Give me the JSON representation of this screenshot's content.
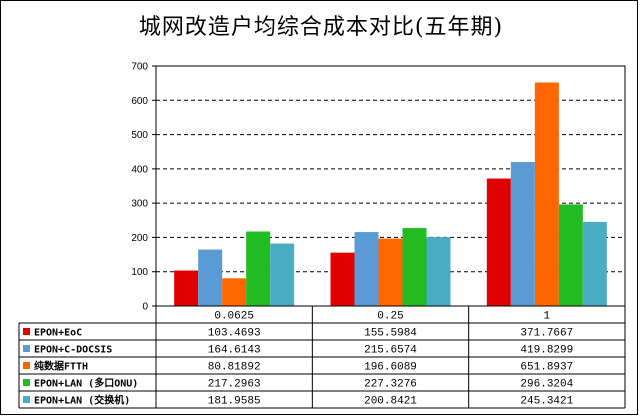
{
  "chart_data": {
    "type": "bar",
    "title": "城网改造户均综合成本对比(五年期)",
    "categories": [
      "0.0625",
      "0.25",
      "1"
    ],
    "series": [
      {
        "name": "EPON+EoC",
        "values": [
          "103.4693",
          "155.5984",
          "371.7667"
        ],
        "color": "#e00000"
      },
      {
        "name": "EPON+C-DOCSIS",
        "values": [
          "164.6143",
          "215.6574",
          "419.8299"
        ],
        "color": "#5b9bd5"
      },
      {
        "name": "纯数据FTTH",
        "values": [
          "80.81892",
          "196.6089",
          "651.8937"
        ],
        "color": "#ff6600"
      },
      {
        "name": "EPON+LAN (多口ONU)",
        "values": [
          "217.2963",
          "227.3276",
          "296.3204"
        ],
        "color": "#22bb22"
      },
      {
        "name": "EPON+LAN (交换机)",
        "values": [
          "181.9585",
          "200.8421",
          "245.3421"
        ],
        "color": "#4bacc6"
      }
    ],
    "y_ticks": [
      "0",
      "100",
      "200",
      "300",
      "400",
      "500",
      "600",
      "700"
    ],
    "ylim": [
      0,
      700
    ],
    "grid": "dashed horizontal",
    "legend": "data table below plot"
  }
}
